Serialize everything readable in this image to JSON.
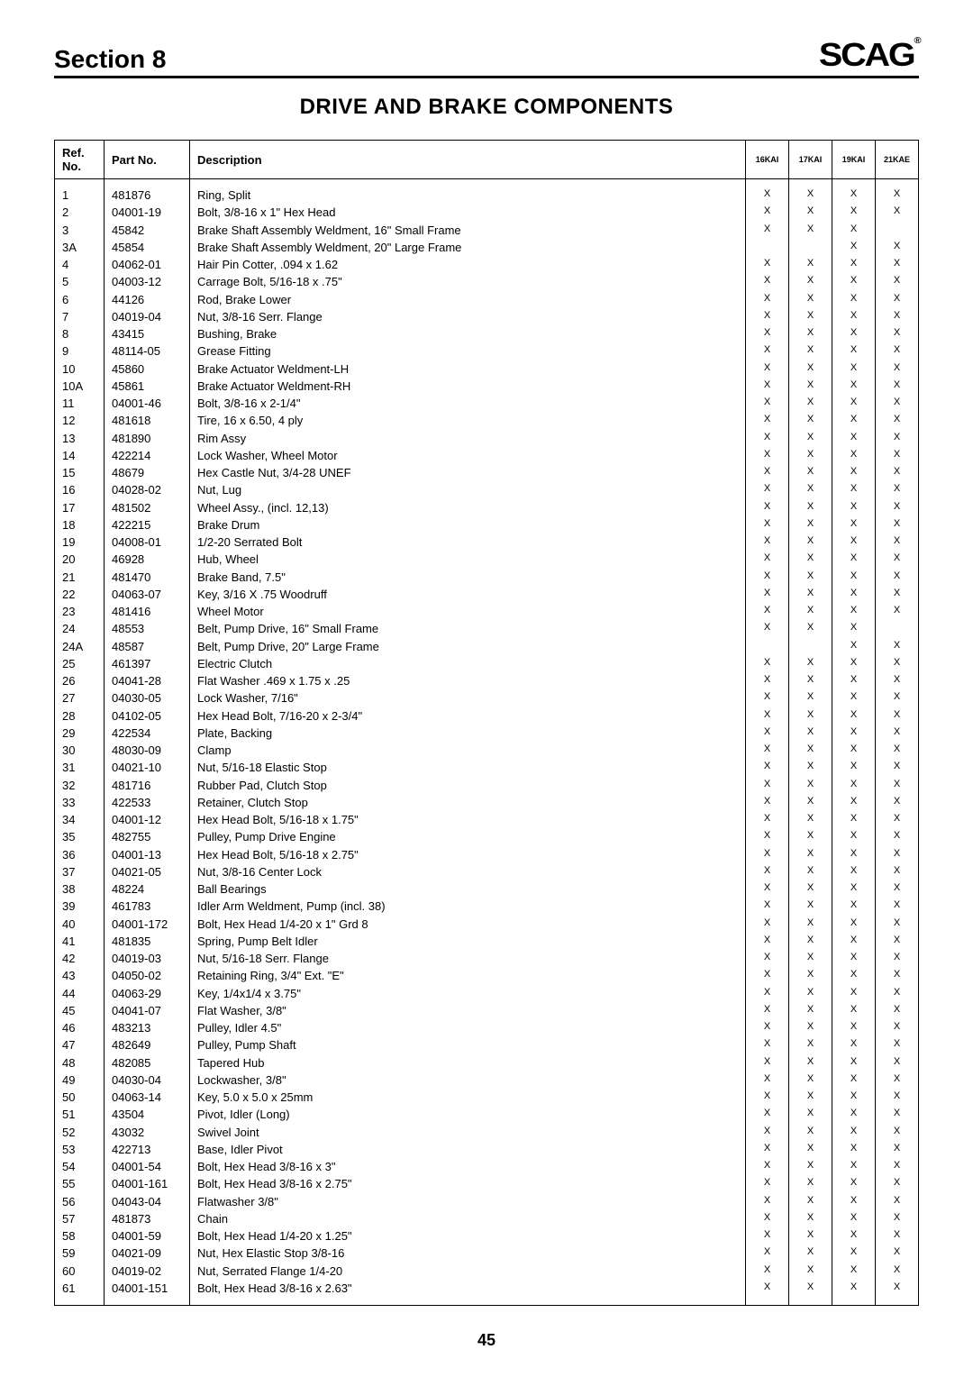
{
  "header": {
    "section_label": "Section 8",
    "brand": "SCAG"
  },
  "title": "DRIVE AND BRAKE COMPONENTS",
  "columns": {
    "ref": "Ref. No.",
    "part": "Part No.",
    "desc": "Description",
    "marks": [
      "16KAI",
      "17KAI",
      "19KAI",
      "21KAE"
    ]
  },
  "rows": [
    {
      "ref": "1",
      "part": "481876",
      "desc": "Ring, Split",
      "m": [
        "X",
        "X",
        "X",
        "X"
      ]
    },
    {
      "ref": "2",
      "part": "04001-19",
      "desc": "Bolt, 3/8-16 x 1\" Hex Head",
      "m": [
        "X",
        "X",
        "X",
        "X"
      ]
    },
    {
      "ref": "3",
      "part": "45842",
      "desc": "Brake Shaft Assembly Weldment, 16\" Small Frame",
      "m": [
        "X",
        "X",
        "X",
        ""
      ]
    },
    {
      "ref": "3A",
      "part": "45854",
      "desc": "Brake Shaft Assembly Weldment, 20\" Large Frame",
      "m": [
        "",
        "",
        "X",
        "X"
      ]
    },
    {
      "ref": "4",
      "part": "04062-01",
      "desc": "Hair Pin Cotter, .094 x 1.62",
      "m": [
        "X",
        "X",
        "X",
        "X"
      ]
    },
    {
      "ref": "5",
      "part": "04003-12",
      "desc": "Carrage Bolt, 5/16-18 x .75\"",
      "m": [
        "X",
        "X",
        "X",
        "X"
      ]
    },
    {
      "ref": "6",
      "part": "44126",
      "desc": "Rod, Brake Lower",
      "m": [
        "X",
        "X",
        "X",
        "X"
      ]
    },
    {
      "ref": "7",
      "part": "04019-04",
      "desc": "Nut, 3/8-16 Serr. Flange",
      "m": [
        "X",
        "X",
        "X",
        "X"
      ]
    },
    {
      "ref": "8",
      "part": "43415",
      "desc": "Bushing, Brake",
      "m": [
        "X",
        "X",
        "X",
        "X"
      ]
    },
    {
      "ref": "9",
      "part": "48114-05",
      "desc": "Grease Fitting",
      "m": [
        "X",
        "X",
        "X",
        "X"
      ]
    },
    {
      "ref": "10",
      "part": "45860",
      "desc": "Brake Actuator Weldment-LH",
      "m": [
        "X",
        "X",
        "X",
        "X"
      ]
    },
    {
      "ref": "10A",
      "part": "45861",
      "desc": "Brake Actuator Weldment-RH",
      "m": [
        "X",
        "X",
        "X",
        "X"
      ]
    },
    {
      "ref": "11",
      "part": "04001-46",
      "desc": "Bolt, 3/8-16 x 2-1/4\"",
      "m": [
        "X",
        "X",
        "X",
        "X"
      ]
    },
    {
      "ref": "12",
      "part": "481618",
      "desc": "Tire, 16 x 6.50, 4 ply",
      "m": [
        "X",
        "X",
        "X",
        "X"
      ]
    },
    {
      "ref": "13",
      "part": "481890",
      "desc": "Rim Assy",
      "m": [
        "X",
        "X",
        "X",
        "X"
      ]
    },
    {
      "ref": "14",
      "part": "422214",
      "desc": "Lock Washer, Wheel Motor",
      "m": [
        "X",
        "X",
        "X",
        "X"
      ]
    },
    {
      "ref": "15",
      "part": "48679",
      "desc": "Hex Castle Nut, 3/4-28 UNEF",
      "m": [
        "X",
        "X",
        "X",
        "X"
      ]
    },
    {
      "ref": "16",
      "part": "04028-02",
      "desc": "Nut, Lug",
      "m": [
        "X",
        "X",
        "X",
        "X"
      ]
    },
    {
      "ref": "17",
      "part": "481502",
      "desc": "Wheel Assy., (incl. 12,13)",
      "m": [
        "X",
        "X",
        "X",
        "X"
      ]
    },
    {
      "ref": "18",
      "part": "422215",
      "desc": "Brake Drum",
      "m": [
        "X",
        "X",
        "X",
        "X"
      ]
    },
    {
      "ref": "19",
      "part": "04008-01",
      "desc": "1/2-20 Serrated Bolt",
      "m": [
        "X",
        "X",
        "X",
        "X"
      ]
    },
    {
      "ref": "20",
      "part": "46928",
      "desc": "Hub, Wheel",
      "m": [
        "X",
        "X",
        "X",
        "X"
      ]
    },
    {
      "ref": "21",
      "part": "481470",
      "desc": "Brake Band, 7.5\"",
      "m": [
        "X",
        "X",
        "X",
        "X"
      ]
    },
    {
      "ref": "22",
      "part": "04063-07",
      "desc": "Key, 3/16 X .75 Woodruff",
      "m": [
        "X",
        "X",
        "X",
        "X"
      ]
    },
    {
      "ref": "23",
      "part": "481416",
      "desc": "Wheel Motor",
      "m": [
        "X",
        "X",
        "X",
        "X"
      ]
    },
    {
      "ref": "24",
      "part": "48553",
      "desc": "Belt, Pump Drive, 16\" Small Frame",
      "m": [
        "X",
        "X",
        "X",
        ""
      ]
    },
    {
      "ref": "24A",
      "part": "48587",
      "desc": "Belt, Pump Drive, 20\" Large Frame",
      "m": [
        "",
        "",
        "X",
        "X"
      ]
    },
    {
      "ref": "25",
      "part": "461397",
      "desc": "Electric Clutch",
      "m": [
        "X",
        "X",
        "X",
        "X"
      ]
    },
    {
      "ref": "26",
      "part": "04041-28",
      "desc": "Flat Washer .469 x 1.75 x .25",
      "m": [
        "X",
        "X",
        "X",
        "X"
      ]
    },
    {
      "ref": "27",
      "part": "04030-05",
      "desc": "Lock Washer, 7/16\"",
      "m": [
        "X",
        "X",
        "X",
        "X"
      ]
    },
    {
      "ref": "28",
      "part": "04102-05",
      "desc": "Hex Head Bolt, 7/16-20 x 2-3/4\"",
      "m": [
        "X",
        "X",
        "X",
        "X"
      ]
    },
    {
      "ref": "29",
      "part": "422534",
      "desc": "Plate, Backing",
      "m": [
        "X",
        "X",
        "X",
        "X"
      ]
    },
    {
      "ref": "30",
      "part": "48030-09",
      "desc": "Clamp",
      "m": [
        "X",
        "X",
        "X",
        "X"
      ]
    },
    {
      "ref": "31",
      "part": "04021-10",
      "desc": "Nut, 5/16-18 Elastic Stop",
      "m": [
        "X",
        "X",
        "X",
        "X"
      ]
    },
    {
      "ref": "32",
      "part": "481716",
      "desc": "Rubber Pad, Clutch Stop",
      "m": [
        "X",
        "X",
        "X",
        "X"
      ]
    },
    {
      "ref": "33",
      "part": "422533",
      "desc": "Retainer, Clutch Stop",
      "m": [
        "X",
        "X",
        "X",
        "X"
      ]
    },
    {
      "ref": "34",
      "part": "04001-12",
      "desc": "Hex Head Bolt, 5/16-18 x 1.75\"",
      "m": [
        "X",
        "X",
        "X",
        "X"
      ]
    },
    {
      "ref": "35",
      "part": "482755",
      "desc": "Pulley, Pump Drive Engine",
      "m": [
        "X",
        "X",
        "X",
        "X"
      ]
    },
    {
      "ref": "36",
      "part": "04001-13",
      "desc": "Hex Head Bolt, 5/16-18 x 2.75\"",
      "m": [
        "X",
        "X",
        "X",
        "X"
      ]
    },
    {
      "ref": "37",
      "part": "04021-05",
      "desc": "Nut, 3/8-16 Center Lock",
      "m": [
        "X",
        "X",
        "X",
        "X"
      ]
    },
    {
      "ref": "38",
      "part": "48224",
      "desc": "Ball Bearings",
      "m": [
        "X",
        "X",
        "X",
        "X"
      ]
    },
    {
      "ref": "39",
      "part": "461783",
      "desc": "Idler Arm Weldment, Pump (incl. 38)",
      "m": [
        "X",
        "X",
        "X",
        "X"
      ]
    },
    {
      "ref": "40",
      "part": "04001-172",
      "desc": "Bolt, Hex Head 1/4-20 x 1\" Grd 8",
      "m": [
        "X",
        "X",
        "X",
        "X"
      ]
    },
    {
      "ref": "41",
      "part": "481835",
      "desc": "Spring, Pump Belt Idler",
      "m": [
        "X",
        "X",
        "X",
        "X"
      ]
    },
    {
      "ref": "42",
      "part": "04019-03",
      "desc": "Nut, 5/16-18 Serr. Flange",
      "m": [
        "X",
        "X",
        "X",
        "X"
      ]
    },
    {
      "ref": "43",
      "part": "04050-02",
      "desc": "Retaining Ring, 3/4\" Ext. \"E\"",
      "m": [
        "X",
        "X",
        "X",
        "X"
      ]
    },
    {
      "ref": "44",
      "part": "04063-29",
      "desc": "Key, 1/4x1/4 x 3.75\"",
      "m": [
        "X",
        "X",
        "X",
        "X"
      ]
    },
    {
      "ref": "45",
      "part": "04041-07",
      "desc": "Flat Washer, 3/8\"",
      "m": [
        "X",
        "X",
        "X",
        "X"
      ]
    },
    {
      "ref": "46",
      "part": "483213",
      "desc": "Pulley, Idler 4.5\"",
      "m": [
        "X",
        "X",
        "X",
        "X"
      ]
    },
    {
      "ref": "47",
      "part": "482649",
      "desc": "Pulley, Pump Shaft",
      "m": [
        "X",
        "X",
        "X",
        "X"
      ]
    },
    {
      "ref": "48",
      "part": "482085",
      "desc": "Tapered Hub",
      "m": [
        "X",
        "X",
        "X",
        "X"
      ]
    },
    {
      "ref": "49",
      "part": "04030-04",
      "desc": "Lockwasher, 3/8\"",
      "m": [
        "X",
        "X",
        "X",
        "X"
      ]
    },
    {
      "ref": "50",
      "part": "04063-14",
      "desc": "Key, 5.0 x 5.0 x 25mm",
      "m": [
        "X",
        "X",
        "X",
        "X"
      ]
    },
    {
      "ref": "51",
      "part": "43504",
      "desc": "Pivot, Idler (Long)",
      "m": [
        "X",
        "X",
        "X",
        "X"
      ]
    },
    {
      "ref": "52",
      "part": "43032",
      "desc": "Swivel Joint",
      "m": [
        "X",
        "X",
        "X",
        "X"
      ]
    },
    {
      "ref": "53",
      "part": "422713",
      "desc": "Base, Idler Pivot",
      "m": [
        "X",
        "X",
        "X",
        "X"
      ]
    },
    {
      "ref": "54",
      "part": "04001-54",
      "desc": "Bolt, Hex Head 3/8-16 x 3\"",
      "m": [
        "X",
        "X",
        "X",
        "X"
      ]
    },
    {
      "ref": "55",
      "part": "04001-161",
      "desc": "Bolt, Hex Head 3/8-16 x 2.75\"",
      "m": [
        "X",
        "X",
        "X",
        "X"
      ]
    },
    {
      "ref": "56",
      "part": "04043-04",
      "desc": "Flatwasher 3/8\"",
      "m": [
        "X",
        "X",
        "X",
        "X"
      ]
    },
    {
      "ref": "57",
      "part": "481873",
      "desc": "Chain",
      "m": [
        "X",
        "X",
        "X",
        "X"
      ]
    },
    {
      "ref": "58",
      "part": "04001-59",
      "desc": "Bolt, Hex Head 1/4-20 x 1.25\"",
      "m": [
        "X",
        "X",
        "X",
        "X"
      ]
    },
    {
      "ref": "59",
      "part": "04021-09",
      "desc": "Nut, Hex Elastic Stop 3/8-16",
      "m": [
        "X",
        "X",
        "X",
        "X"
      ]
    },
    {
      "ref": "60",
      "part": "04019-02",
      "desc": "Nut, Serrated Flange 1/4-20",
      "m": [
        "X",
        "X",
        "X",
        "X"
      ]
    },
    {
      "ref": "61",
      "part": "04001-151",
      "desc": "Bolt, Hex Head 3/8-16 x 2.63\"",
      "m": [
        "X",
        "X",
        "X",
        "X"
      ]
    }
  ],
  "page_number": "45"
}
